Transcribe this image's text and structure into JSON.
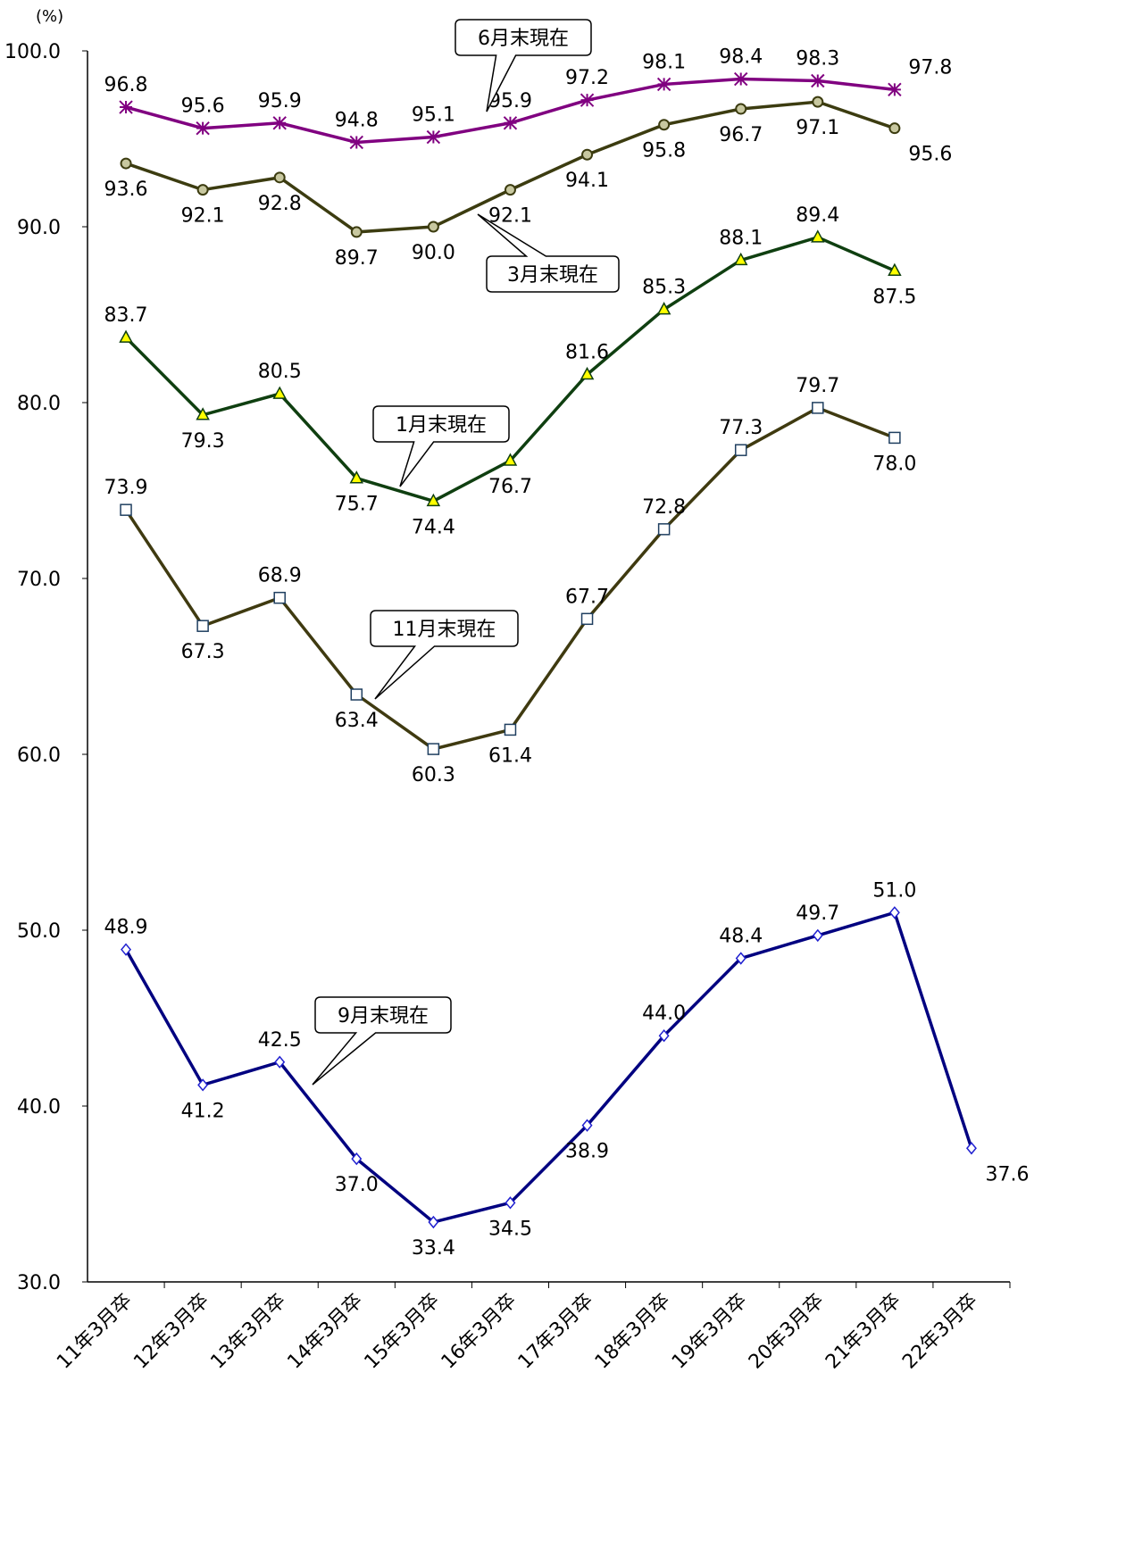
{
  "chart_data": {
    "type": "line",
    "y_unit_label": "(%)",
    "categories": [
      "11年3月卒",
      "12年3月卒",
      "13年3月卒",
      "14年3月卒",
      "15年3月卒",
      "16年3月卒",
      "17年3月卒",
      "18年3月卒",
      "19年3月卒",
      "20年3月卒",
      "21年3月卒",
      "22年3月卒"
    ],
    "ylim": [
      30,
      100
    ],
    "yticks": [
      {
        "value": 30,
        "label": "30.0"
      },
      {
        "value": 40,
        "label": "40.0"
      },
      {
        "value": 50,
        "label": "50.0"
      },
      {
        "value": 60,
        "label": "60.0"
      },
      {
        "value": 70,
        "label": "70.0"
      },
      {
        "value": 80,
        "label": "80.0"
      },
      {
        "value": 90,
        "label": "90.0"
      },
      {
        "value": 100,
        "label": "100.0"
      }
    ],
    "grid": false,
    "series": [
      {
        "name": "6月末現在",
        "color": "#800080",
        "marker": "star",
        "marker_fill": "#800080",
        "values": [
          96.8,
          95.6,
          95.9,
          94.8,
          95.1,
          95.9,
          97.2,
          98.1,
          98.4,
          98.3,
          97.8,
          null
        ],
        "value_labels": [
          "96.8",
          "95.6",
          "95.9",
          "94.8",
          "95.1",
          "95.9",
          "97.2",
          "98.1",
          "98.4",
          "98.3",
          "97.8",
          null
        ]
      },
      {
        "name": "3月末現在",
        "color": "#3c3c10",
        "marker": "circle",
        "marker_fill": "#c8c8a0",
        "values": [
          93.6,
          92.1,
          92.8,
          89.7,
          90.0,
          92.1,
          94.1,
          95.8,
          96.7,
          97.1,
          95.6,
          null
        ],
        "value_labels": [
          "93.6",
          "92.1",
          "92.8",
          "89.7",
          "90.0",
          "92.1",
          "94.1",
          "95.8",
          "96.7",
          "97.1",
          "95.6",
          null
        ]
      },
      {
        "name": "1月末現在",
        "color": "#0f3f10",
        "marker": "triangle",
        "marker_fill": "#ffff00",
        "values": [
          83.7,
          79.3,
          80.5,
          75.7,
          74.4,
          76.7,
          81.6,
          85.3,
          88.1,
          89.4,
          87.5,
          null
        ],
        "value_labels": [
          "83.7",
          "79.3",
          "80.5",
          "75.7",
          "74.4",
          "76.7",
          "81.6",
          "85.3",
          "88.1",
          "89.4",
          "87.5",
          null
        ]
      },
      {
        "name": "11月末現在",
        "color": "#3f3a10",
        "marker": "square",
        "marker_fill": "#ffffff",
        "values": [
          73.9,
          67.3,
          68.9,
          63.4,
          60.3,
          61.4,
          67.7,
          72.8,
          77.3,
          79.7,
          78.0,
          null
        ],
        "value_labels": [
          "73.9",
          "67.3",
          "68.9",
          "63.4",
          "60.3",
          "61.4",
          "67.7",
          "72.8",
          "77.3",
          "79.7",
          "78.0",
          null
        ]
      },
      {
        "name": "9月末現在",
        "color": "#000080",
        "marker": "diamond",
        "marker_fill": "#ffffff",
        "values": [
          48.9,
          41.2,
          42.5,
          37.0,
          33.4,
          34.5,
          38.9,
          44.0,
          48.4,
          49.7,
          51.0,
          37.6
        ],
        "value_labels": [
          "48.9",
          "41.2",
          "42.5",
          "37.0",
          "33.4",
          "34.5",
          "38.9",
          "44.0",
          "48.4",
          "49.7",
          "51.0",
          "37.6"
        ]
      }
    ]
  }
}
